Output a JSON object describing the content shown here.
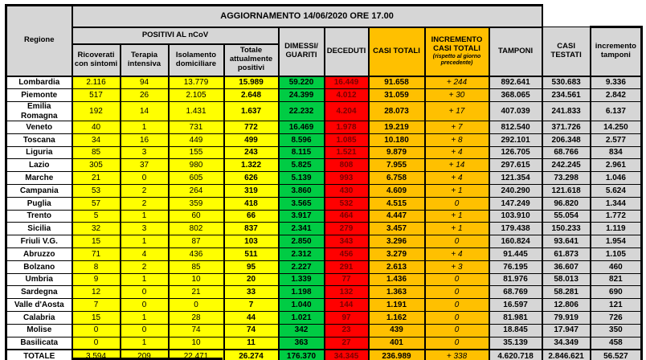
{
  "title": "AGGIORNAMENTO 14/06/2020 ORE 17.00",
  "colors": {
    "yellow": "#FFFF00",
    "green": "#00CC44",
    "red": "#FF0000",
    "dark_red_text": "#7A0000",
    "orange": "#FFC000",
    "gray": "#D6D6D6"
  },
  "headers": {
    "regione": "Regione",
    "positivi_group": "POSITIVI AL nCoV",
    "ricoverati": "Ricoverati con sintomi",
    "terapia": "Terapia intensiva",
    "isolamento": "Isolamento domiciliare",
    "totale_positivi": "Totale attualmente positivi",
    "dimessi_guariti": "DIMESSI/ GUARITI",
    "deceduti": "DECEDUTI",
    "casi_totali": "CASI TOTALI",
    "incremento_casi": "INCREMENTO CASI  TOTALI",
    "incremento_casi_note": "(rispetto al giorno precedente)",
    "tamponi": "TAMPONI",
    "casi_testati": "CASI TESTATI",
    "incremento_tamponi": "incremento tamponi"
  },
  "rows": [
    {
      "region": "Lombardia",
      "ricoverati": "2.116",
      "terapia": "94",
      "isolamento": "13.779",
      "totale_positivi": "15.989",
      "dimessi_guariti": "59.220",
      "deceduti": "16.449",
      "casi_totali": "91.658",
      "incremento_casi": "+ 244",
      "tamponi": "892.641",
      "casi_testati": "530.683",
      "incremento_tamponi": "9.336"
    },
    {
      "region": "Piemonte",
      "ricoverati": "517",
      "terapia": "26",
      "isolamento": "2.105",
      "totale_positivi": "2.648",
      "dimessi_guariti": "24.399",
      "deceduti": "4.012",
      "casi_totali": "31.059",
      "incremento_casi": "+ 30",
      "tamponi": "368.065",
      "casi_testati": "234.561",
      "incremento_tamponi": "2.842"
    },
    {
      "region": "Emilia Romagna",
      "ricoverati": "192",
      "terapia": "14",
      "isolamento": "1.431",
      "totale_positivi": "1.637",
      "dimessi_guariti": "22.232",
      "deceduti": "4.204",
      "casi_totali": "28.073",
      "incremento_casi": "+ 17",
      "tamponi": "407.039",
      "casi_testati": "241.833",
      "incremento_tamponi": "6.137"
    },
    {
      "region": "Veneto",
      "ricoverati": "40",
      "terapia": "1",
      "isolamento": "731",
      "totale_positivi": "772",
      "dimessi_guariti": "16.469",
      "deceduti": "1.978",
      "casi_totali": "19.219",
      "incremento_casi": "+ 7",
      "tamponi": "812.540",
      "casi_testati": "371.726",
      "incremento_tamponi": "14.250"
    },
    {
      "region": "Toscana",
      "ricoverati": "34",
      "terapia": "16",
      "isolamento": "449",
      "totale_positivi": "499",
      "dimessi_guariti": "8.596",
      "deceduti": "1.085",
      "casi_totali": "10.180",
      "incremento_casi": "+ 8",
      "tamponi": "292.101",
      "casi_testati": "206.348",
      "incremento_tamponi": "2.577"
    },
    {
      "region": "Liguria",
      "ricoverati": "85",
      "terapia": "3",
      "isolamento": "155",
      "totale_positivi": "243",
      "dimessi_guariti": "8.115",
      "deceduti": "1.521",
      "casi_totali": "9.879",
      "incremento_casi": "+ 4",
      "tamponi": "126.705",
      "casi_testati": "68.766",
      "incremento_tamponi": "834"
    },
    {
      "region": "Lazio",
      "ricoverati": "305",
      "terapia": "37",
      "isolamento": "980",
      "totale_positivi": "1.322",
      "dimessi_guariti": "5.825",
      "deceduti": "808",
      "casi_totali": "7.955",
      "incremento_casi": "+ 14",
      "tamponi": "297.615",
      "casi_testati": "242.245",
      "incremento_tamponi": "2.961"
    },
    {
      "region": "Marche",
      "ricoverati": "21",
      "terapia": "0",
      "isolamento": "605",
      "totale_positivi": "626",
      "dimessi_guariti": "5.139",
      "deceduti": "993",
      "casi_totali": "6.758",
      "incremento_casi": "+ 4",
      "tamponi": "121.354",
      "casi_testati": "73.298",
      "incremento_tamponi": "1.046"
    },
    {
      "region": "Campania",
      "ricoverati": "53",
      "terapia": "2",
      "isolamento": "264",
      "totale_positivi": "319",
      "dimessi_guariti": "3.860",
      "deceduti": "430",
      "casi_totali": "4.609",
      "incremento_casi": "+ 1",
      "tamponi": "240.290",
      "casi_testati": "121.618",
      "incremento_tamponi": "5.624"
    },
    {
      "region": "Puglia",
      "ricoverati": "57",
      "terapia": "2",
      "isolamento": "359",
      "totale_positivi": "418",
      "dimessi_guariti": "3.565",
      "deceduti": "532",
      "casi_totali": "4.515",
      "incremento_casi": "0",
      "tamponi": "147.249",
      "casi_testati": "96.820",
      "incremento_tamponi": "1.344"
    },
    {
      "region": "Trento",
      "ricoverati": "5",
      "terapia": "1",
      "isolamento": "60",
      "totale_positivi": "66",
      "dimessi_guariti": "3.917",
      "deceduti": "464",
      "casi_totali": "4.447",
      "incremento_casi": "+ 1",
      "tamponi": "103.910",
      "casi_testati": "55.054",
      "incremento_tamponi": "1.772"
    },
    {
      "region": "Sicilia",
      "ricoverati": "32",
      "terapia": "3",
      "isolamento": "802",
      "totale_positivi": "837",
      "dimessi_guariti": "2.341",
      "deceduti": "279",
      "casi_totali": "3.457",
      "incremento_casi": "+ 1",
      "tamponi": "179.438",
      "casi_testati": "150.233",
      "incremento_tamponi": "1.119"
    },
    {
      "region": "Friuli V.G.",
      "ricoverati": "15",
      "terapia": "1",
      "isolamento": "87",
      "totale_positivi": "103",
      "dimessi_guariti": "2.850",
      "deceduti": "343",
      "casi_totali": "3.296",
      "incremento_casi": "0",
      "tamponi": "160.824",
      "casi_testati": "93.641",
      "incremento_tamponi": "1.954"
    },
    {
      "region": "Abruzzo",
      "ricoverati": "71",
      "terapia": "4",
      "isolamento": "436",
      "totale_positivi": "511",
      "dimessi_guariti": "2.312",
      "deceduti": "456",
      "casi_totali": "3.279",
      "incremento_casi": "+ 4",
      "tamponi": "91.445",
      "casi_testati": "61.873",
      "incremento_tamponi": "1.105"
    },
    {
      "region": "Bolzano",
      "ricoverati": "8",
      "terapia": "2",
      "isolamento": "85",
      "totale_positivi": "95",
      "dimessi_guariti": "2.227",
      "deceduti": "291",
      "casi_totali": "2.613",
      "incremento_casi": "+ 3",
      "tamponi": "76.195",
      "casi_testati": "36.607",
      "incremento_tamponi": "460"
    },
    {
      "region": "Umbria",
      "ricoverati": "9",
      "terapia": "1",
      "isolamento": "10",
      "totale_positivi": "20",
      "dimessi_guariti": "1.339",
      "deceduti": "77",
      "casi_totali": "1.436",
      "incremento_casi": "0",
      "tamponi": "81.976",
      "casi_testati": "58.013",
      "incremento_tamponi": "821"
    },
    {
      "region": "Sardegna",
      "ricoverati": "12",
      "terapia": "0",
      "isolamento": "21",
      "totale_positivi": "33",
      "dimessi_guariti": "1.198",
      "deceduti": "132",
      "casi_totali": "1.363",
      "incremento_casi": "0",
      "tamponi": "68.769",
      "casi_testati": "58.281",
      "incremento_tamponi": "690"
    },
    {
      "region": "Valle d'Aosta",
      "ricoverati": "7",
      "terapia": "0",
      "isolamento": "0",
      "totale_positivi": "7",
      "dimessi_guariti": "1.040",
      "deceduti": "144",
      "casi_totali": "1.191",
      "incremento_casi": "0",
      "tamponi": "16.597",
      "casi_testati": "12.806",
      "incremento_tamponi": "121"
    },
    {
      "region": "Calabria",
      "ricoverati": "15",
      "terapia": "1",
      "isolamento": "28",
      "totale_positivi": "44",
      "dimessi_guariti": "1.021",
      "deceduti": "97",
      "casi_totali": "1.162",
      "incremento_casi": "0",
      "tamponi": "81.981",
      "casi_testati": "79.919",
      "incremento_tamponi": "726"
    },
    {
      "region": "Molise",
      "ricoverati": "0",
      "terapia": "0",
      "isolamento": "74",
      "totale_positivi": "74",
      "dimessi_guariti": "342",
      "deceduti": "23",
      "casi_totali": "439",
      "incremento_casi": "0",
      "tamponi": "18.845",
      "casi_testati": "17.947",
      "incremento_tamponi": "350"
    },
    {
      "region": "Basilicata",
      "ricoverati": "0",
      "terapia": "1",
      "isolamento": "10",
      "totale_positivi": "11",
      "dimessi_guariti": "363",
      "deceduti": "27",
      "casi_totali": "401",
      "incremento_casi": "0",
      "tamponi": "35.139",
      "casi_testati": "34.349",
      "incremento_tamponi": "458"
    }
  ],
  "totale": {
    "region": "TOTALE",
    "ricoverati": "3.594",
    "terapia": "209",
    "isolamento": "22.471",
    "totale_positivi": "26.274",
    "dimessi_guariti": "176.370",
    "deceduti": "34.345",
    "casi_totali": "236.989",
    "incremento_casi": "+ 338",
    "tamponi": "4.620.718",
    "casi_testati": "2.846.621",
    "incremento_tamponi": "56.527"
  }
}
